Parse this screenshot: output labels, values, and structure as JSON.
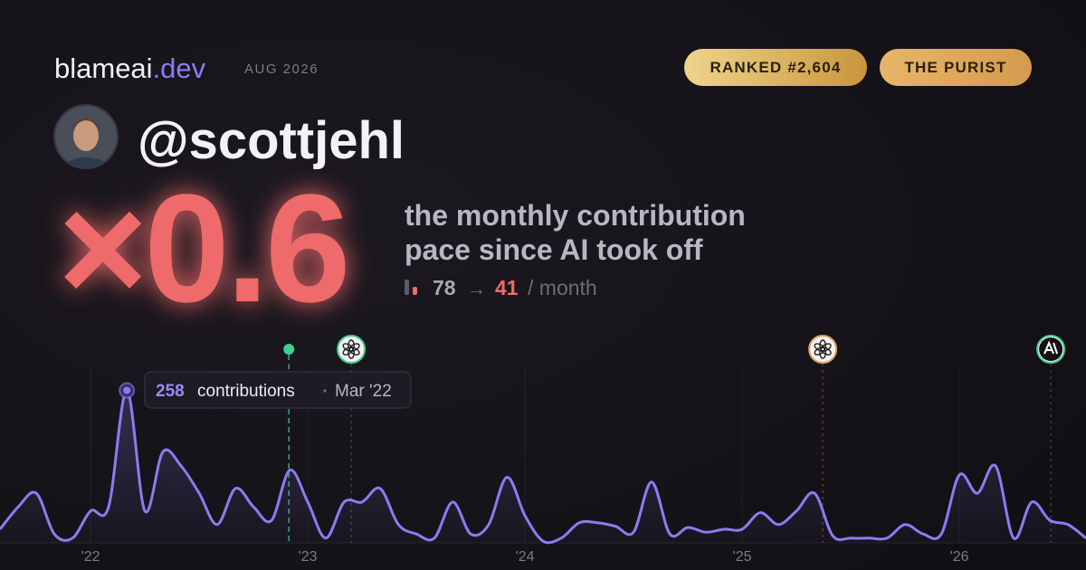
{
  "header": {
    "brand": "blameai",
    "brand_suffix": ".dev",
    "period": "AUG 2026",
    "badges": [
      "RANKED #2,604",
      "THE PURIST"
    ],
    "handle": "@scottjehl"
  },
  "summary": {
    "multiplier": "×0.6",
    "description": [
      "the monthly contribution",
      "pace since AI took off"
    ],
    "before": "78",
    "arrow": "→",
    "after": "41",
    "unit": "/ month"
  },
  "chart_data": {
    "type": "line",
    "x": [
      2021.583,
      2021.667,
      2021.75,
      2021.833,
      2021.917,
      2022,
      2022.083,
      2022.167,
      2022.25,
      2022.333,
      2022.417,
      2022.5,
      2022.583,
      2022.667,
      2022.75,
      2022.833,
      2022.917,
      2023,
      2023.083,
      2023.167,
      2023.25,
      2023.333,
      2023.417,
      2023.5,
      2023.583,
      2023.667,
      2023.75,
      2023.833,
      2023.917,
      2024,
      2024.083,
      2024.167,
      2024.25,
      2024.333,
      2024.417,
      2024.5,
      2024.583,
      2024.667,
      2024.75,
      2024.833,
      2024.917,
      2025,
      2025.083,
      2025.167,
      2025.25,
      2025.333,
      2025.417,
      2025.5,
      2025.583,
      2025.667,
      2025.75,
      2025.833,
      2025.917,
      2026,
      2026.083,
      2026.167,
      2026.25,
      2026.333,
      2026.417,
      2026.5,
      2026.583
    ],
    "series": [
      {
        "name": "contributions",
        "color": "#8b7cf0",
        "values": [
          23,
          61,
          84,
          15,
          8,
          54,
          61,
          258,
          54,
          154,
          130,
          84,
          31,
          92,
          61,
          38,
          123,
          69,
          8,
          69,
          69,
          92,
          31,
          15,
          8,
          69,
          15,
          31,
          111,
          46,
          3,
          8,
          34,
          34,
          28,
          18,
          103,
          15,
          26,
          18,
          23,
          23,
          51,
          31,
          54,
          84,
          12,
          8,
          8,
          8,
          31,
          15,
          15,
          115,
          84,
          130,
          8,
          69,
          38,
          31,
          8
        ]
      }
    ],
    "xlim": [
      2021.583,
      2026.583
    ],
    "ylim": [
      0,
      300
    ],
    "xticks": [
      {
        "value": 2022,
        "label": "'22"
      },
      {
        "value": 2023,
        "label": "'23"
      },
      {
        "value": 2024,
        "label": "'24"
      },
      {
        "value": 2025,
        "label": "'25"
      },
      {
        "value": 2026,
        "label": "'26"
      }
    ],
    "grid": true,
    "markers": [
      {
        "x": 2022.913,
        "color": "#3ecf8e"
      },
      {
        "x": 2023.2,
        "color": "#3ecf8e"
      },
      {
        "x": 2025.371,
        "color": "#e0a05a"
      },
      {
        "x": 2026.421,
        "color": "#3ecf8e"
      }
    ],
    "tooltip": {
      "value": "258",
      "label": "contributions",
      "date": "Mar '22"
    }
  }
}
